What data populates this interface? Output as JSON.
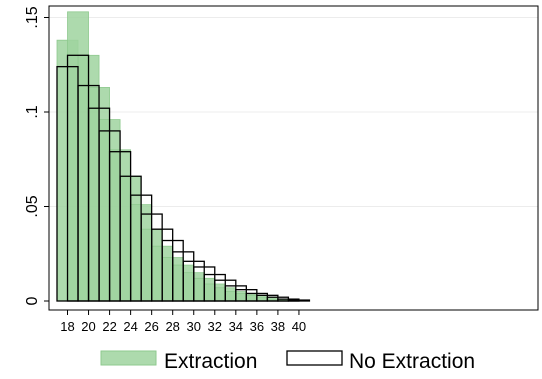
{
  "chart_data": {
    "type": "bar",
    "title": "",
    "xlabel": "",
    "ylabel": "",
    "x": [
      18,
      19,
      20,
      21,
      22,
      23,
      24,
      25,
      26,
      27,
      28,
      29,
      30,
      31,
      32,
      33,
      34,
      35,
      36,
      37,
      38,
      39,
      40
    ],
    "xticks": [
      "18",
      "20",
      "22",
      "24",
      "26",
      "28",
      "30",
      "32",
      "34",
      "36",
      "38",
      "40"
    ],
    "yticks": [
      "0",
      ".05",
      ".1",
      ".15"
    ],
    "ylim": [
      0,
      0.155
    ],
    "grid": true,
    "legend_position": "bottom",
    "series": [
      {
        "name": "Extraction",
        "style": "filled",
        "color": "#9fd39f",
        "values": [
          0.138,
          0.153,
          0.13,
          0.113,
          0.096,
          0.08,
          0.066,
          0.051,
          0.038,
          0.029,
          0.023,
          0.019,
          0.015,
          0.012,
          0.009,
          0.007,
          0.005,
          0.004,
          0.003,
          0.002,
          0.001,
          0.0005,
          0.0003
        ]
      },
      {
        "name": "No Extraction",
        "style": "outline",
        "color": "#000000",
        "values": [
          0.124,
          0.13,
          0.114,
          0.102,
          0.09,
          0.079,
          0.066,
          0.056,
          0.046,
          0.038,
          0.032,
          0.026,
          0.021,
          0.018,
          0.014,
          0.011,
          0.008,
          0.006,
          0.004,
          0.003,
          0.002,
          0.001,
          0.0005
        ]
      }
    ]
  }
}
